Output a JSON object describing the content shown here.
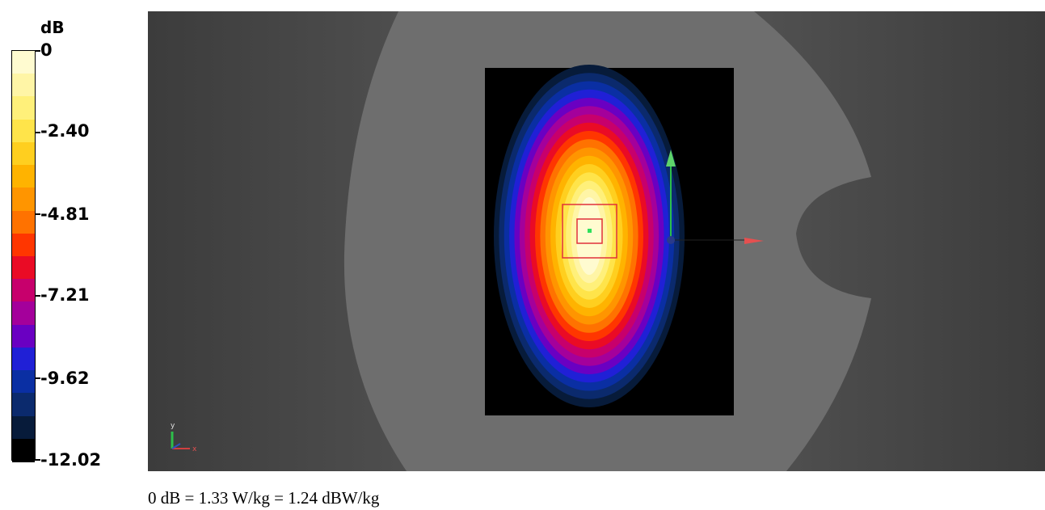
{
  "legend": {
    "title": "dB",
    "labels": [
      "0",
      "-2.40",
      "-4.81",
      "-7.21",
      "-9.62",
      "-12.02"
    ],
    "colors": [
      "#fffbd0",
      "#fff5a6",
      "#fff07a",
      "#ffe44a",
      "#ffcf1f",
      "#ffb300",
      "#ff9500",
      "#ff7200",
      "#ff3600",
      "#ea0b25",
      "#c7006c",
      "#a4009b",
      "#6a00c2",
      "#2020d6",
      "#0a2fa3",
      "#0b2a6d",
      "#071b3a",
      "#000000"
    ]
  },
  "caption": "0 dB = 1.33 W/kg = 1.24 dBW/kg",
  "axes_gizmo": {
    "x_label": "x",
    "y_label": "y"
  }
}
